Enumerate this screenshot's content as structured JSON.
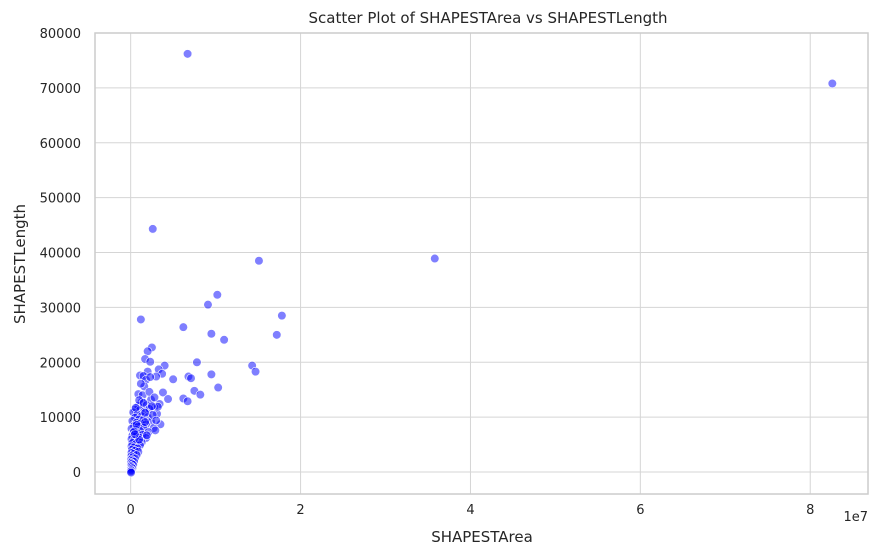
{
  "chart_data": {
    "type": "scatter",
    "title": "Scatter Plot of SHAPESTArea vs SHAPESTLength",
    "xlabel": "SHAPESTArea",
    "ylabel": "SHAPESTLength",
    "x_offset_text": "1e7",
    "x_scale": 10000000,
    "xlim": [
      -4200000,
      86800000
    ],
    "ylim": [
      -4000,
      80000
    ],
    "xticks": [
      0,
      20000000,
      40000000,
      60000000,
      80000000
    ],
    "xtick_labels": [
      "0",
      "2",
      "4",
      "6",
      "8"
    ],
    "yticks": [
      0,
      10000,
      20000,
      30000,
      40000,
      50000,
      60000,
      70000,
      80000
    ],
    "ytick_labels": [
      "0",
      "10000",
      "20000",
      "30000",
      "40000",
      "50000",
      "60000",
      "70000",
      "80000"
    ],
    "grid": true,
    "point_color": "#0000ff",
    "point_opacity": 0.5,
    "points": [
      [
        82600000,
        70800
      ],
      [
        6700000,
        76200
      ],
      [
        2600000,
        44300
      ],
      [
        15100000,
        38500
      ],
      [
        35800000,
        38900
      ],
      [
        10200000,
        32300
      ],
      [
        9100000,
        30500
      ],
      [
        17800000,
        28500
      ],
      [
        1200000,
        27800
      ],
      [
        6200000,
        26400
      ],
      [
        9500000,
        25200
      ],
      [
        17200000,
        25000
      ],
      [
        11000000,
        24100
      ],
      [
        2500000,
        22700
      ],
      [
        2000000,
        22000
      ],
      [
        1700000,
        20600
      ],
      [
        7800000,
        20000
      ],
      [
        2300000,
        20100
      ],
      [
        4000000,
        19400
      ],
      [
        14300000,
        19400
      ],
      [
        3300000,
        18700
      ],
      [
        2000000,
        18300
      ],
      [
        14700000,
        18300
      ],
      [
        3700000,
        17900
      ],
      [
        9500000,
        17800
      ],
      [
        1100000,
        17600
      ],
      [
        1500000,
        17500
      ],
      [
        3000000,
        17400
      ],
      [
        6800000,
        17400
      ],
      [
        7100000,
        17100
      ],
      [
        5000000,
        16900
      ],
      [
        1800000,
        16800
      ],
      [
        10300000,
        15400
      ],
      [
        7500000,
        14800
      ],
      [
        8200000,
        14100
      ],
      [
        3800000,
        14500
      ],
      [
        900000,
        14200
      ],
      [
        1400000,
        14000
      ],
      [
        6200000,
        13400
      ],
      [
        4400000,
        13300
      ],
      [
        6700000,
        12900
      ],
      [
        2400000,
        13200
      ],
      [
        1300000,
        12800
      ],
      [
        3400000,
        12400
      ],
      [
        900000,
        12100
      ],
      [
        1900000,
        12200
      ],
      [
        2800000,
        11800
      ],
      [
        500000,
        11400
      ],
      [
        1100000,
        11300
      ],
      [
        1600000,
        11000
      ],
      [
        2200000,
        11500
      ],
      [
        300000,
        10900
      ],
      [
        800000,
        10500
      ],
      [
        1300000,
        10200
      ],
      [
        2000000,
        10000
      ],
      [
        3100000,
        10600
      ],
      [
        500000,
        9900
      ],
      [
        1000000,
        9600
      ],
      [
        1500000,
        9500
      ],
      [
        2400000,
        9200
      ],
      [
        200000,
        9300
      ],
      [
        700000,
        9000
      ],
      [
        1200000,
        8900
      ],
      [
        1800000,
        8700
      ],
      [
        3500000,
        8700
      ],
      [
        400000,
        8400
      ],
      [
        900000,
        8300
      ],
      [
        1500000,
        8100
      ],
      [
        2700000,
        8000
      ],
      [
        100000,
        7900
      ],
      [
        600000,
        7700
      ],
      [
        1100000,
        7500
      ],
      [
        2100000,
        7300
      ],
      [
        300000,
        7200
      ],
      [
        800000,
        7000
      ],
      [
        1400000,
        6800
      ],
      [
        200000,
        6600
      ],
      [
        600000,
        6500
      ],
      [
        1000000,
        6300
      ],
      [
        1800000,
        6200
      ],
      [
        100000,
        6000
      ],
      [
        400000,
        5800
      ],
      [
        900000,
        5600
      ],
      [
        1300000,
        5400
      ],
      [
        200000,
        5300
      ],
      [
        600000,
        5100
      ],
      [
        1100000,
        4900
      ],
      [
        100000,
        4700
      ],
      [
        400000,
        4500
      ],
      [
        800000,
        4300
      ],
      [
        150000,
        4100
      ],
      [
        500000,
        3900
      ],
      [
        900000,
        3700
      ],
      [
        100000,
        3500
      ],
      [
        350000,
        3300
      ],
      [
        700000,
        3100
      ],
      [
        80000,
        2900
      ],
      [
        250000,
        2700
      ],
      [
        500000,
        2500
      ],
      [
        60000,
        2300
      ],
      [
        200000,
        2100
      ],
      [
        400000,
        1900
      ],
      [
        50000,
        1700
      ],
      [
        150000,
        1500
      ],
      [
        300000,
        1300
      ],
      [
        40000,
        1100
      ],
      [
        100000,
        900
      ],
      [
        200000,
        700
      ],
      [
        30000,
        500
      ],
      [
        70000,
        300
      ],
      [
        20000,
        100
      ],
      [
        50000,
        -100
      ],
      [
        1600000,
        15600
      ],
      [
        2200000,
        14600
      ],
      [
        1000000,
        13100
      ],
      [
        2600000,
        10400
      ],
      [
        3200000,
        11900
      ],
      [
        1700000,
        9100
      ],
      [
        2900000,
        7600
      ],
      [
        600000,
        11700
      ],
      [
        1200000,
        16100
      ],
      [
        2500000,
        12000
      ],
      [
        1900000,
        6700
      ],
      [
        700000,
        8600
      ],
      [
        1500000,
        12600
      ],
      [
        2800000,
        13600
      ],
      [
        2300000,
        17300
      ],
      [
        400000,
        7400
      ],
      [
        3000000,
        9400
      ],
      [
        1000000,
        5900
      ],
      [
        1700000,
        10800
      ],
      [
        500000,
        6900
      ]
    ]
  }
}
